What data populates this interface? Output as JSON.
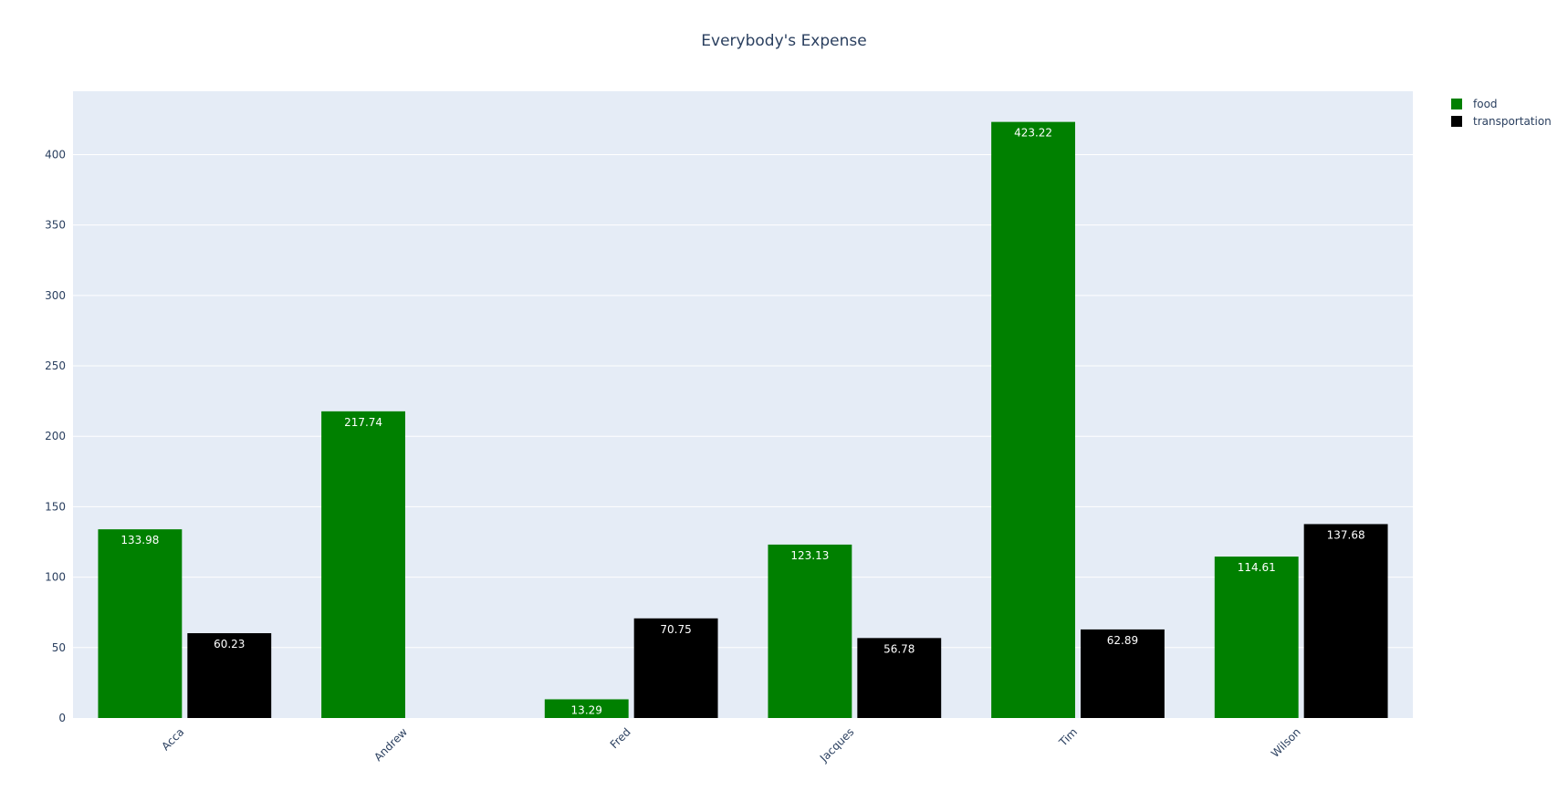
{
  "chart_data": {
    "type": "bar",
    "title": "Everybody's Expense",
    "xlabel": "",
    "ylabel": "",
    "categories": [
      "Acca",
      "Andrew",
      "Fred",
      "Jacques",
      "Tim",
      "Wilson"
    ],
    "series": [
      {
        "name": "food",
        "color": "#008000",
        "values": [
          133.98,
          217.74,
          13.29,
          123.13,
          423.22,
          114.61
        ],
        "labels": [
          "133.98",
          "217.74",
          "13.29",
          "123.13",
          "423.22",
          "114.61"
        ]
      },
      {
        "name": "transportation",
        "color": "#000000",
        "values": [
          60.23,
          null,
          70.75,
          56.78,
          62.89,
          137.68
        ],
        "labels": [
          "60.23",
          "",
          "70.75",
          "56.78",
          "62.89",
          "137.68"
        ]
      }
    ],
    "ylim": [
      0,
      445
    ],
    "yticks": [
      0,
      50,
      100,
      150,
      200,
      250,
      300,
      350,
      400
    ],
    "ytick_labels": [
      "0",
      "50",
      "100",
      "150",
      "200",
      "250",
      "300",
      "350",
      "400"
    ],
    "grid": true,
    "legend": "top-right",
    "background": "#e5ecf6"
  }
}
